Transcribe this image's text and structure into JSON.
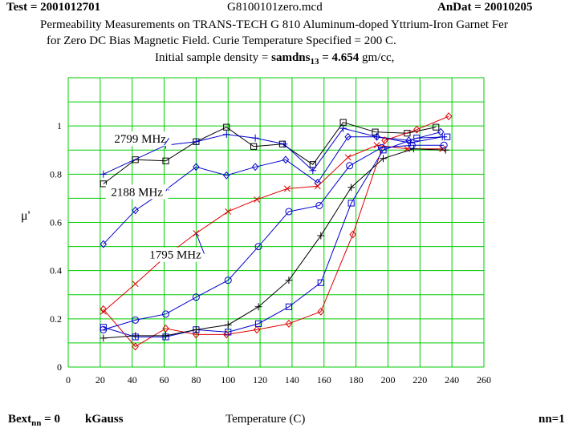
{
  "header": {
    "test_label": "Test = 2001012701",
    "file_name": "G8100101zero.mcd",
    "andat_label": "AnDat = 20010205",
    "description_line1": "Permeability Measurements on  TRANS-TECH  G 810 Aluminum-doped Yttrium-Iron Garnet Fer",
    "description_line2": "for Zero DC Bias Magnetic Field.     Curie Temperature Specified  = 200 C.",
    "density_prefix": "Initial sample density = ",
    "density_var": "samdns",
    "density_sub": "13",
    "density_value": " = 4.654",
    "density_unit": " gm/cc,"
  },
  "footer": {
    "bext_label": "Bext",
    "bext_sub": "nn",
    "bext_value": " = 0",
    "bext_unit": "kGauss",
    "nn_label": "nn=1"
  },
  "chart_data": {
    "type": "line",
    "title": "",
    "xlabel": "Temperature (C)",
    "ylabel": "μ'",
    "xlim": [
      0,
      260
    ],
    "ylim": [
      0,
      1.2
    ],
    "x_ticks": [
      "0",
      "20",
      "40",
      "60",
      "80",
      "100",
      "120",
      "140",
      "160",
      "180",
      "200",
      "220",
      "240",
      "260"
    ],
    "y_ticks": [
      "0",
      "0.2",
      "0.4",
      "0.6",
      "0.8",
      "1"
    ],
    "grid": true,
    "annotations": [
      {
        "text": "2799 MHz",
        "x": 45,
        "y": 0.93,
        "arrow_to": [
          60,
          0.92
        ]
      },
      {
        "text": "2188 MHz",
        "x": 43,
        "y": 0.71,
        "arrow_to": [
          62,
          0.74
        ]
      },
      {
        "text": "1795 MHz",
        "x": 67,
        "y": 0.45,
        "arrow_to": [
          80,
          0.555
        ]
      }
    ],
    "series": [
      {
        "name": "2799 MHz black squares",
        "color": "#000000",
        "marker": "square",
        "x": [
          22,
          42,
          61,
          80,
          99,
          116,
          134,
          153,
          172,
          192,
          212,
          230
        ],
        "y": [
          0.76,
          0.86,
          0.855,
          0.935,
          0.995,
          0.915,
          0.925,
          0.84,
          1.015,
          0.975,
          0.97,
          0.995
        ]
      },
      {
        "name": "2799 MHz blue plus",
        "color": "#0000cc",
        "marker": "plus",
        "x": [
          22,
          61,
          80,
          99,
          117,
          135,
          153,
          172,
          193,
          214,
          234
        ],
        "y": [
          0.8,
          0.92,
          0.935,
          0.965,
          0.95,
          0.925,
          0.815,
          0.99,
          0.955,
          0.93,
          0.955
        ]
      },
      {
        "name": "2188 MHz blue diamonds",
        "color": "#0000cc",
        "marker": "diamond",
        "x": [
          22,
          42,
          61,
          80,
          99,
          117,
          136,
          156,
          175,
          193,
          213,
          233
        ],
        "y": [
          0.51,
          0.65,
          0.735,
          0.83,
          0.795,
          0.83,
          0.86,
          0.765,
          0.955,
          0.955,
          0.94,
          0.975
        ]
      },
      {
        "name": "1795 MHz red crosses",
        "color": "#dd0000",
        "marker": "x",
        "x": [
          22,
          42,
          62,
          80,
          100,
          118,
          137,
          156,
          175,
          193,
          212,
          234
        ],
        "y": [
          0.23,
          0.345,
          0.465,
          0.555,
          0.645,
          0.695,
          0.74,
          0.75,
          0.87,
          0.92,
          0.905,
          0.905
        ]
      },
      {
        "name": "red diamonds",
        "color": "#dd0000",
        "marker": "diamond",
        "x": [
          22,
          42,
          61,
          80,
          99,
          118,
          138,
          158,
          178,
          198,
          218,
          238
        ],
        "y": [
          0.24,
          0.085,
          0.16,
          0.135,
          0.135,
          0.155,
          0.18,
          0.23,
          0.55,
          0.94,
          0.985,
          1.04
        ]
      },
      {
        "name": "blue squares",
        "color": "#0000cc",
        "marker": "square",
        "x": [
          22,
          42,
          61,
          80,
          100,
          119,
          138,
          158,
          177,
          197,
          218,
          237
        ],
        "y": [
          0.165,
          0.125,
          0.125,
          0.155,
          0.145,
          0.18,
          0.25,
          0.35,
          0.68,
          0.9,
          0.95,
          0.955
        ]
      },
      {
        "name": "black plus",
        "color": "#000000",
        "marker": "plus",
        "x": [
          22,
          42,
          61,
          80,
          100,
          119,
          138,
          158,
          177,
          197,
          216,
          236
        ],
        "y": [
          0.12,
          0.13,
          0.13,
          0.155,
          0.175,
          0.25,
          0.36,
          0.545,
          0.745,
          0.865,
          0.905,
          0.9
        ]
      },
      {
        "name": "blue circles",
        "color": "#0000cc",
        "marker": "circle",
        "x": [
          22,
          42,
          61,
          80,
          100,
          119,
          138,
          157,
          176,
          196,
          215,
          235
        ],
        "y": [
          0.155,
          0.195,
          0.22,
          0.29,
          0.36,
          0.5,
          0.645,
          0.67,
          0.835,
          0.91,
          0.92,
          0.92
        ]
      }
    ]
  }
}
